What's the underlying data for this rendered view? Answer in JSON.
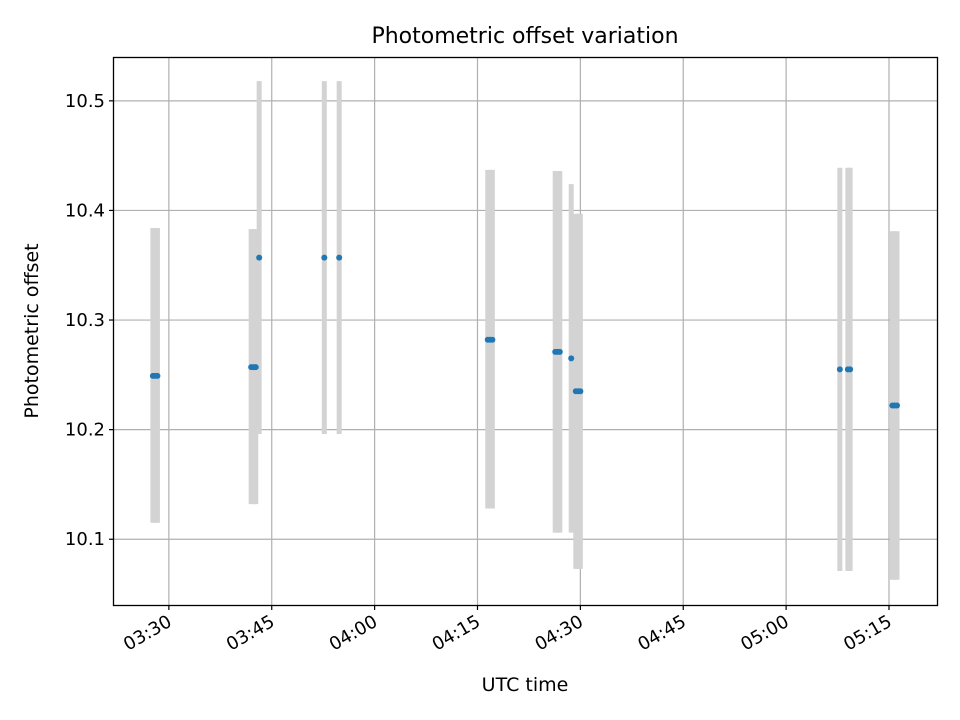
{
  "chart_data": {
    "type": "scatter",
    "title": "Photometric offset variation",
    "xlabel": "UTC time",
    "ylabel": "Photometric offset",
    "xlim": [
      "03:22",
      "05:22"
    ],
    "ylim": [
      10.04,
      10.54
    ],
    "xticks": [
      "03:30",
      "03:45",
      "04:00",
      "04:15",
      "04:30",
      "04:45",
      "05:00",
      "05:15"
    ],
    "yticks": [
      "10.1",
      "10.2",
      "10.3",
      "10.4",
      "10.5"
    ],
    "grid": true,
    "colors": {
      "marker": "#1f77b4",
      "errorbar": "#d3d3d3",
      "grid": "#b0b0b0"
    },
    "points": [
      {
        "t": "03:27:40",
        "y": 10.249,
        "lo": 10.115,
        "hi": 10.384
      },
      {
        "t": "03:28:00",
        "y": 10.249,
        "lo": 10.115,
        "hi": 10.384
      },
      {
        "t": "03:28:20",
        "y": 10.249,
        "lo": 10.115,
        "hi": 10.384
      },
      {
        "t": "03:42:00",
        "y": 10.257,
        "lo": 10.132,
        "hi": 10.383
      },
      {
        "t": "03:42:20",
        "y": 10.257,
        "lo": 10.132,
        "hi": 10.383
      },
      {
        "t": "03:42:40",
        "y": 10.257,
        "lo": 10.132,
        "hi": 10.383
      },
      {
        "t": "03:43:10",
        "y": 10.357,
        "lo": 10.196,
        "hi": 10.518
      },
      {
        "t": "03:52:40",
        "y": 10.357,
        "lo": 10.196,
        "hi": 10.518
      },
      {
        "t": "03:54:50",
        "y": 10.357,
        "lo": 10.196,
        "hi": 10.518
      },
      {
        "t": "04:16:30",
        "y": 10.282,
        "lo": 10.128,
        "hi": 10.437
      },
      {
        "t": "04:16:50",
        "y": 10.282,
        "lo": 10.128,
        "hi": 10.437
      },
      {
        "t": "04:17:10",
        "y": 10.282,
        "lo": 10.128,
        "hi": 10.437
      },
      {
        "t": "04:26:20",
        "y": 10.271,
        "lo": 10.106,
        "hi": 10.436
      },
      {
        "t": "04:26:40",
        "y": 10.271,
        "lo": 10.106,
        "hi": 10.436
      },
      {
        "t": "04:27:00",
        "y": 10.271,
        "lo": 10.106,
        "hi": 10.436
      },
      {
        "t": "04:28:40",
        "y": 10.265,
        "lo": 10.106,
        "hi": 10.424
      },
      {
        "t": "04:29:20",
        "y": 10.235,
        "lo": 10.073,
        "hi": 10.397
      },
      {
        "t": "04:29:40",
        "y": 10.235,
        "lo": 10.073,
        "hi": 10.397
      },
      {
        "t": "04:30:00",
        "y": 10.235,
        "lo": 10.073,
        "hi": 10.397
      },
      {
        "t": "05:07:50",
        "y": 10.255,
        "lo": 10.071,
        "hi": 10.439
      },
      {
        "t": "05:09:00",
        "y": 10.255,
        "lo": 10.071,
        "hi": 10.439
      },
      {
        "t": "05:09:20",
        "y": 10.255,
        "lo": 10.071,
        "hi": 10.439
      },
      {
        "t": "05:15:30",
        "y": 10.222,
        "lo": 10.063,
        "hi": 10.381
      },
      {
        "t": "05:15:50",
        "y": 10.222,
        "lo": 10.063,
        "hi": 10.381
      },
      {
        "t": "05:16:10",
        "y": 10.222,
        "lo": 10.063,
        "hi": 10.381
      }
    ]
  }
}
